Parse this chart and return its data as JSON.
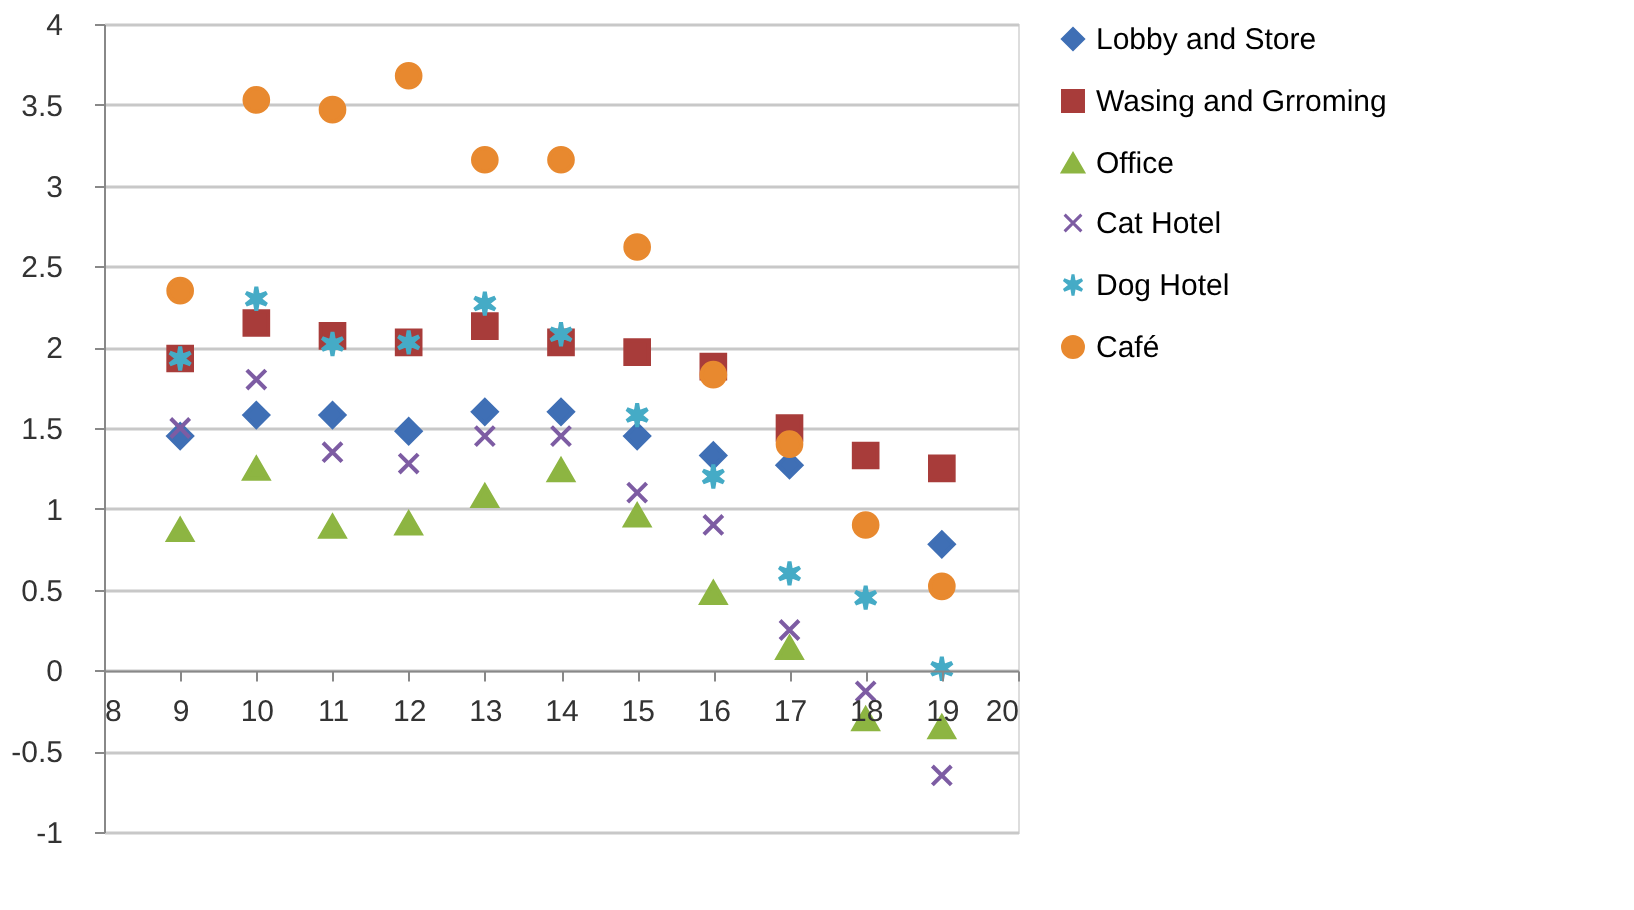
{
  "chart_data": {
    "type": "scatter",
    "x": [
      9,
      10,
      11,
      12,
      13,
      14,
      15,
      16,
      17,
      18,
      19
    ],
    "series": [
      {
        "name": "Lobby and Store",
        "color": "#3f6fb5",
        "marker": "diamond",
        "values": [
          1.45,
          1.58,
          1.58,
          1.48,
          1.6,
          1.6,
          1.45,
          1.33,
          1.27,
          null,
          0.78
        ]
      },
      {
        "name": "Wasing and Grroming",
        "color": "#a83c3a",
        "marker": "square",
        "values": [
          1.93,
          2.15,
          2.07,
          2.03,
          2.13,
          2.03,
          1.97,
          1.88,
          1.5,
          1.33,
          1.25
        ]
      },
      {
        "name": "Office",
        "color": "#8db542",
        "marker": "triangle",
        "values": [
          0.87,
          1.25,
          0.89,
          0.91,
          1.08,
          1.24,
          0.96,
          0.48,
          0.14,
          -0.3,
          -0.35
        ]
      },
      {
        "name": "Cat Hotel",
        "color": "#7d5ca3",
        "marker": "cross",
        "values": [
          1.5,
          1.8,
          1.35,
          1.28,
          1.45,
          1.45,
          1.1,
          0.9,
          0.25,
          -0.13,
          -0.65
        ]
      },
      {
        "name": "Dog Hotel",
        "color": "#45abc6",
        "values": [
          1.93,
          2.3,
          2.02,
          2.03,
          2.27,
          2.08,
          1.58,
          1.2,
          0.6,
          0.45,
          0.01
        ]
      },
      {
        "name": "Café",
        "color": "#e8892f",
        "marker": "circle",
        "values": [
          2.35,
          3.53,
          3.47,
          3.68,
          3.16,
          3.16,
          2.62,
          1.83,
          1.4,
          0.9,
          0.52
        ]
      }
    ],
    "xlim": [
      8,
      20
    ],
    "xticks": [
      8,
      9,
      10,
      11,
      12,
      13,
      14,
      15,
      16,
      17,
      18,
      19,
      20
    ],
    "ylim": [
      -1,
      4
    ],
    "yticks": [
      -1,
      -0.5,
      0,
      0.5,
      1,
      1.5,
      2,
      2.5,
      3,
      3.5,
      4
    ],
    "grid": "y",
    "legend": "right"
  }
}
